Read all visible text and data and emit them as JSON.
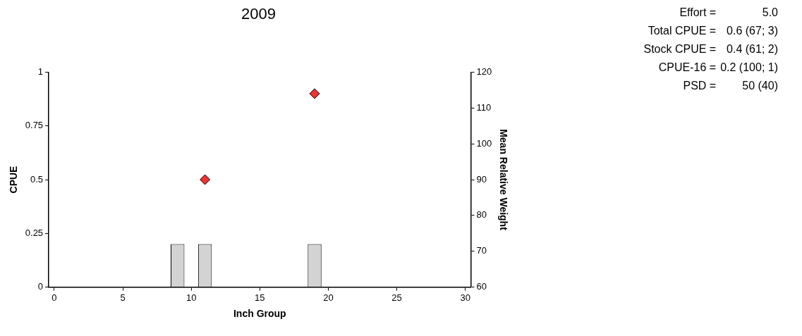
{
  "chart_data": {
    "type": "bar",
    "title": "2009",
    "xlabel": "Inch Group",
    "ylabel": "CPUE",
    "y2label": "Mean Relative Weight",
    "xlim": [
      -0.4,
      30.4
    ],
    "xticks": [
      0,
      5,
      10,
      15,
      20,
      25,
      30
    ],
    "ylim": [
      0,
      1
    ],
    "yticks": [
      0,
      0.25,
      0.5,
      0.75,
      1
    ],
    "y2lim": [
      60,
      120
    ],
    "y2ticks": [
      60,
      70,
      80,
      90,
      100,
      110,
      120
    ],
    "grid": false,
    "legend": false,
    "series": [
      {
        "color": "#d3d3d3",
        "x": [
          9,
          11,
          19
        ],
        "values": [
          0.2,
          0.2,
          0.2
        ]
      },
      {
        "type": "scatter",
        "axis": "y2",
        "marker": "diamond",
        "color": "#ee3333",
        "x": [
          11,
          19
        ],
        "values": [
          90,
          114
        ]
      }
    ],
    "annotations": [
      "Effort = 5.0",
      "Total CPUE = 0.6 (67; 3)",
      "Stock CPUE = 0.4 (61; 2)",
      "CPUE-16 = 0.2 (100; 1)",
      "PSD = 50 (40)"
    ]
  }
}
